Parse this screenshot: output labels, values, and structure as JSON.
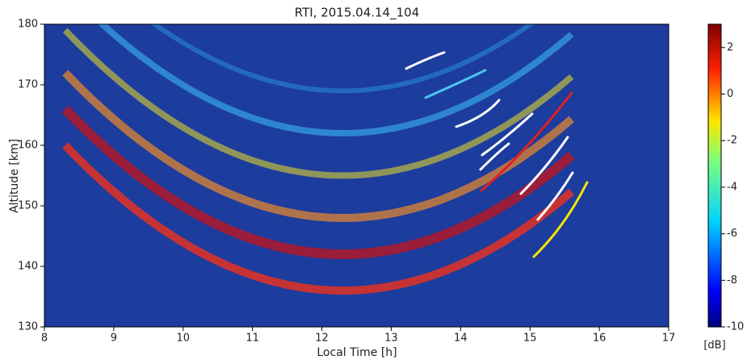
{
  "chart_data": {
    "type": "heatmap",
    "title": "RTI, 2015.04.14_104",
    "x_label": "Local Time [h]",
    "y_label": "Altitude [km]",
    "xlim": [
      8,
      17
    ],
    "xticks": [
      8,
      9,
      10,
      11,
      12,
      13,
      14,
      15,
      16,
      17
    ],
    "ylim": [
      130,
      180
    ],
    "yticks": [
      130,
      140,
      150,
      160,
      170,
      180
    ],
    "colorbar": {
      "label": "[dB]",
      "lim": [
        -10,
        3
      ],
      "ticks": [
        -10,
        -8,
        -6,
        -4,
        -2,
        0,
        2
      ]
    }
  }
}
